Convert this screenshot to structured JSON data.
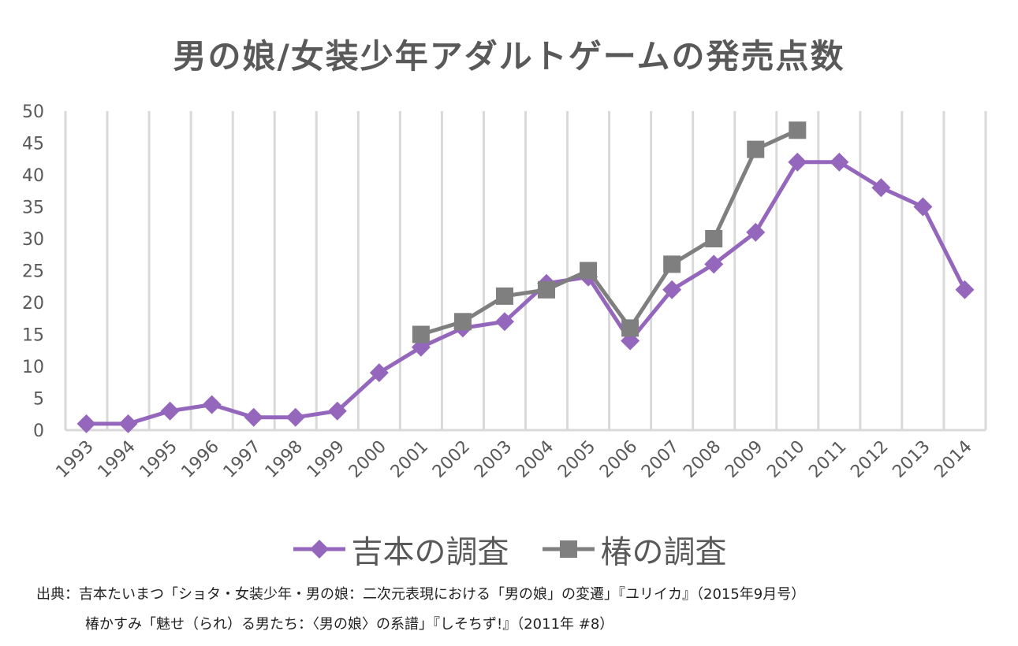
{
  "chart_data": {
    "type": "line",
    "title": "男の娘/女装少年アダルトゲームの発売点数",
    "xlabel": "",
    "ylabel": "",
    "ylim": [
      0,
      50
    ],
    "yticks": [
      "0",
      "5",
      "10",
      "15",
      "20",
      "25",
      "30",
      "35",
      "40",
      "45",
      "50"
    ],
    "grid": "vertical",
    "legend_position": "bottom",
    "categories": [
      "1993",
      "1994",
      "1995",
      "1996",
      "1997",
      "1998",
      "1999",
      "2000",
      "2001",
      "2002",
      "2003",
      "2004",
      "2005",
      "2006",
      "2007",
      "2008",
      "2009",
      "2010",
      "2011",
      "2012",
      "2013",
      "2014"
    ],
    "series": [
      {
        "name": "吉本の調査",
        "color": "#9467bd",
        "marker": "diamond",
        "values": [
          1,
          1,
          3,
          4,
          2,
          2,
          3,
          9,
          13,
          16,
          17,
          23,
          24,
          14,
          22,
          26,
          31,
          42,
          42,
          38,
          35,
          22
        ]
      },
      {
        "name": "椿の調査",
        "color": "#7f7f7f",
        "marker": "square",
        "values": [
          null,
          null,
          null,
          null,
          null,
          null,
          null,
          null,
          15,
          17,
          21,
          22,
          25,
          16,
          26,
          30,
          44,
          47,
          null,
          null,
          null,
          null
        ]
      }
    ]
  },
  "footer": {
    "line1": "出典：吉本たいまつ「ショタ・女装少年・男の娘：二次元表現における「男の娘」の変遷」『ユリイカ』（2015年9月号）",
    "line2": "椿かすみ「魅せ（られ）る男たち：〈男の娘〉の系譜」『しそちず!』（2011年 #8）"
  }
}
